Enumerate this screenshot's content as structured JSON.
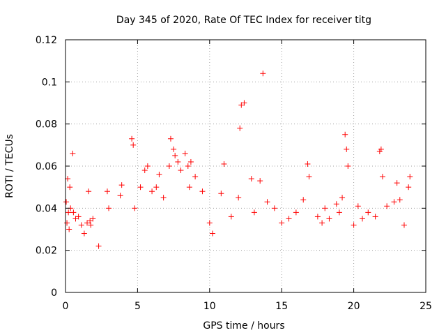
{
  "chart_data": {
    "type": "scatter",
    "title": "Day 345 of 2020, Rate Of TEC Index for receiver titg",
    "xlabel": "GPS time / hours",
    "ylabel": "ROTI / TECUs",
    "xlim": [
      0,
      25
    ],
    "ylim": [
      0,
      0.12
    ],
    "xticks": [
      0,
      5,
      10,
      15,
      20,
      25
    ],
    "xtick_labels": [
      "0",
      "5",
      "10",
      "15",
      "20",
      "25"
    ],
    "yticks": [
      0,
      0.02,
      0.04,
      0.06,
      0.08,
      0.1,
      0.12
    ],
    "ytick_labels": [
      "0",
      "0.02",
      "0.04",
      "0.06",
      "0.08",
      "0.1",
      "0.12"
    ],
    "grid": true,
    "marker": "+",
    "color": "#ff0000",
    "series": [
      {
        "name": "ROTI",
        "x": [
          0.05,
          0.1,
          0.15,
          0.2,
          0.25,
          0.3,
          0.35,
          0.5,
          0.55,
          0.7,
          0.9,
          1.1,
          1.3,
          1.5,
          1.6,
          1.7,
          1.75,
          1.9,
          2.3,
          2.9,
          3.0,
          3.8,
          3.9,
          4.6,
          4.7,
          4.8,
          5.2,
          5.5,
          5.7,
          6.0,
          6.3,
          6.5,
          6.8,
          7.2,
          7.3,
          7.5,
          7.6,
          7.8,
          8.0,
          8.3,
          8.5,
          8.6,
          8.7,
          9.0,
          9.5,
          10.0,
          10.2,
          10.8,
          11.0,
          11.5,
          12.0,
          12.1,
          12.2,
          12.4,
          12.9,
          13.1,
          13.5,
          13.7,
          14.0,
          14.5,
          15.0,
          15.5,
          16.0,
          16.5,
          16.8,
          16.9,
          17.5,
          17.8,
          18.0,
          18.3,
          18.8,
          19.0,
          19.2,
          19.4,
          19.5,
          19.6,
          20.0,
          20.3,
          20.6,
          21.0,
          21.5,
          21.8,
          21.9,
          22.0,
          22.3,
          22.8,
          23.0,
          23.2,
          23.5,
          23.8,
          23.9
        ],
        "y": [
          0.043,
          0.033,
          0.054,
          0.038,
          0.03,
          0.05,
          0.04,
          0.066,
          0.038,
          0.035,
          0.036,
          0.032,
          0.028,
          0.033,
          0.048,
          0.034,
          0.032,
          0.035,
          0.022,
          0.048,
          0.04,
          0.046,
          0.051,
          0.073,
          0.07,
          0.04,
          0.05,
          0.058,
          0.06,
          0.048,
          0.05,
          0.056,
          0.045,
          0.06,
          0.073,
          0.068,
          0.065,
          0.062,
          0.058,
          0.066,
          0.06,
          0.05,
          0.062,
          0.055,
          0.048,
          0.033,
          0.028,
          0.047,
          0.061,
          0.036,
          0.045,
          0.078,
          0.089,
          0.09,
          0.054,
          0.038,
          0.053,
          0.104,
          0.043,
          0.04,
          0.033,
          0.035,
          0.038,
          0.044,
          0.061,
          0.055,
          0.036,
          0.033,
          0.04,
          0.035,
          0.042,
          0.038,
          0.045,
          0.075,
          0.068,
          0.06,
          0.032,
          0.041,
          0.035,
          0.038,
          0.036,
          0.067,
          0.068,
          0.055,
          0.041,
          0.043,
          0.052,
          0.044,
          0.032,
          0.05,
          0.055
        ]
      }
    ]
  }
}
